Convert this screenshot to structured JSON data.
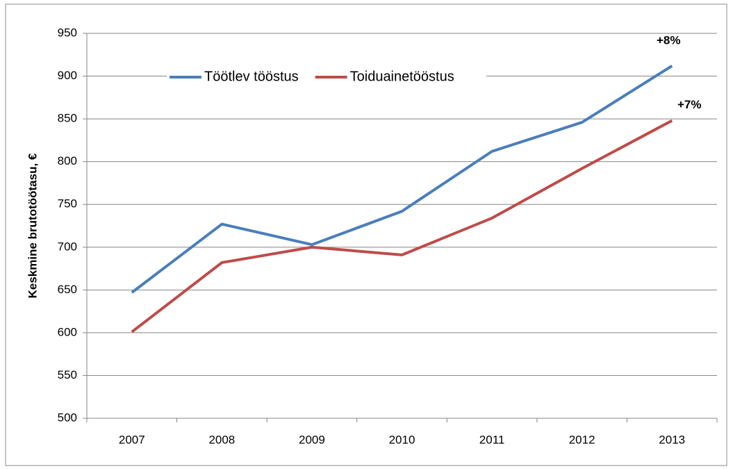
{
  "chart_data": {
    "type": "line",
    "y_axis_label": "Keskmine brutotöötasu, €",
    "categories": [
      "2007",
      "2008",
      "2009",
      "2010",
      "2011",
      "2012",
      "2013"
    ],
    "series": [
      {
        "name": "Töötlev tööstus",
        "color": "#4a7ebb",
        "values": [
          647,
          727,
          703,
          742,
          812,
          846,
          912
        ]
      },
      {
        "name": "Toiduainetööstus",
        "color": "#be4b48",
        "values": [
          601,
          682,
          700,
          691,
          734,
          792,
          848
        ]
      }
    ],
    "annotations": [
      "+8%",
      "+7%"
    ],
    "ylim": [
      500,
      950
    ],
    "yticks": [
      500,
      550,
      600,
      650,
      700,
      750,
      800,
      850,
      900,
      950
    ],
    "grid": true,
    "legend": "top"
  }
}
